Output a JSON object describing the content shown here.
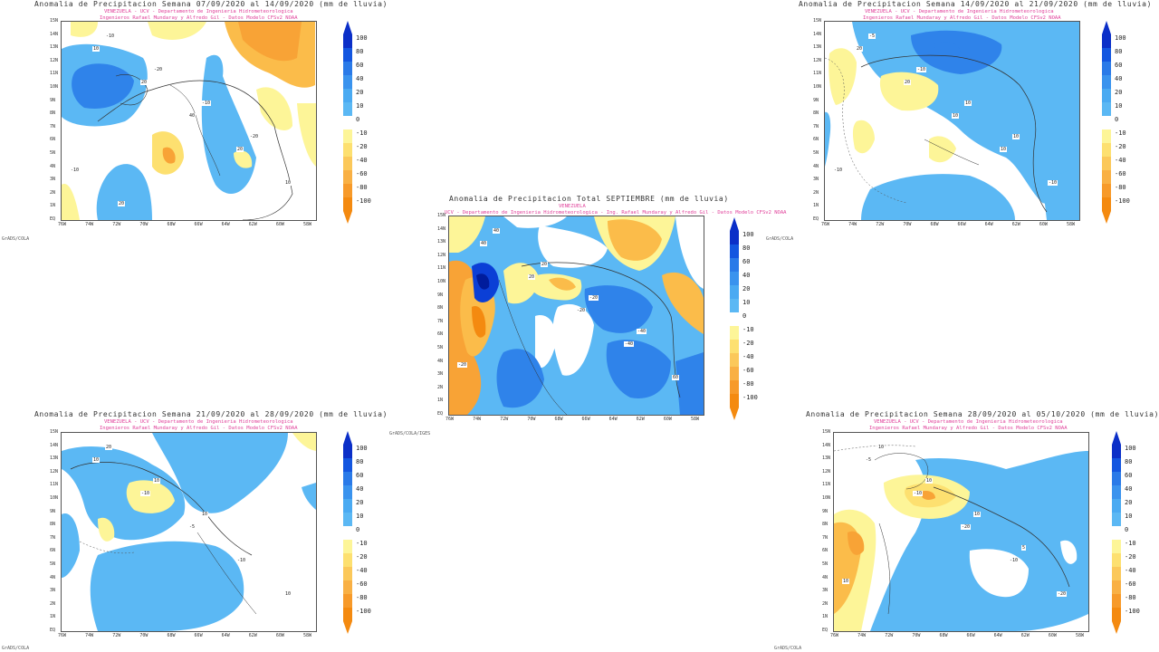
{
  "colors": {
    "blue_dark": "#0b3fd6",
    "blue_mid": "#2f83ea",
    "blue_light": "#5bb8f4",
    "yellow_light": "#fdf598",
    "yellow_mid": "#fde070",
    "orange_light": "#fbbc4a",
    "orange": "#f8a336",
    "orange_dark": "#f48a10",
    "coast": "#333333"
  },
  "lat_labels": [
    "15N",
    "14N",
    "13N",
    "12N",
    "11N",
    "10N",
    "9N",
    "8N",
    "7N",
    "6N",
    "5N",
    "4N",
    "3N",
    "2N",
    "1N",
    "EQ"
  ],
  "lon_labels": [
    "76W",
    "74W",
    "72W",
    "70W",
    "68W",
    "66W",
    "64W",
    "62W",
    "60W",
    "58W"
  ],
  "colorbar": {
    "labels": [
      "100",
      "80",
      "60",
      "40",
      "20",
      "10",
      "0",
      "-10",
      "-20",
      "-40",
      "-60",
      "-80",
      "-100"
    ],
    "colors": [
      "#0b2fc8",
      "#1356e0",
      "#2a7ae8",
      "#3a93ee",
      "#4aaaf2",
      "#5bb8f4",
      "#ffffff",
      "#fdf598",
      "#fde070",
      "#fbc85a",
      "#f9b044",
      "#f79a2a",
      "#f48a10"
    ]
  },
  "panels": [
    {
      "id": "week1",
      "title": "Anomalia de Precipitacion Semana 07/09/2020 al 14/09/2020 (mm de lluvia)",
      "subtitle1": "VENEZUELA - UCV - Departamento de Ingenieria Hidrometeorologica",
      "subtitle2": "Ingenieros Rafael Mundaray y Alfredo Gil - Datos Modelo CFSv2 NOAA",
      "credit": "GrADS/COLA",
      "contour_labels": [
        "10",
        "20",
        "40",
        "20",
        "10",
        "-10",
        "-20",
        "-10",
        "-20",
        "-10",
        "20"
      ]
    },
    {
      "id": "week2",
      "title": "Anomalia de Precipitacion Semana 14/09/2020 al 21/09/2020 (mm de lluvia)",
      "subtitle1": "VENEZUELA - UCV - Departamento de Ingenieria Hidrometeorologica",
      "subtitle2": "Ingenieros Rafael Mundaray y Alfredo Gil - Datos Modelo CFSv2 NOAA",
      "credit": "GrADS/COLA",
      "contour_labels": [
        "20",
        "20",
        "10",
        "10",
        "-10",
        "-5",
        "-10",
        "10",
        "10",
        "-10"
      ]
    },
    {
      "id": "total",
      "title": "Anomalia de Precipitacion Total SEPTIEMBRE (mm de lluvia)",
      "subtitle1": "VENEZUELA",
      "subtitle2": "UCV - Departamento de Ingenieria Hidrometeorologica - Ing. Rafael Mundaray y Alfredo Gil - Datos Modelo CFSv2 NOAA",
      "credit": "GrADS/COLA/IGES",
      "contour_labels": [
        "40",
        "20",
        "-20",
        "-40",
        "60",
        "40",
        "20",
        "-20",
        "-40",
        "-20"
      ]
    },
    {
      "id": "week3",
      "title": "Anomalia de Precipitacion Semana 21/09/2020 al 28/09/2020 (mm de lluvia)",
      "subtitle1": "VENEZUELA - UCV - Departamento de Ingenieria Hidrometeorologica",
      "subtitle2": "Ingenieros Rafael Mundaray y Alfredo Gil - Datos Modelo CFSv2 NOAA",
      "credit": "GrADS/COLA",
      "contour_labels": [
        "10",
        "-10",
        "-5",
        "-10",
        "10",
        "20",
        "10",
        "10"
      ]
    },
    {
      "id": "week4",
      "title": "Anomalia de Precipitacion Semana 28/09/2020 al 05/10/2020 (mm de lluvia)",
      "subtitle1": "VENEZUELA - UCV - Departamento de Ingenieria Hidrometeorologica",
      "subtitle2": "Ingenieros Rafael Mundaray y Alfredo Gil - Datos Modelo CFSv2 NOAA",
      "credit": "GrADS/COLA",
      "contour_labels": [
        "-5",
        "-10",
        "-20",
        "-10",
        "-20",
        "10",
        "10",
        "10",
        "5",
        "10"
      ]
    }
  ]
}
